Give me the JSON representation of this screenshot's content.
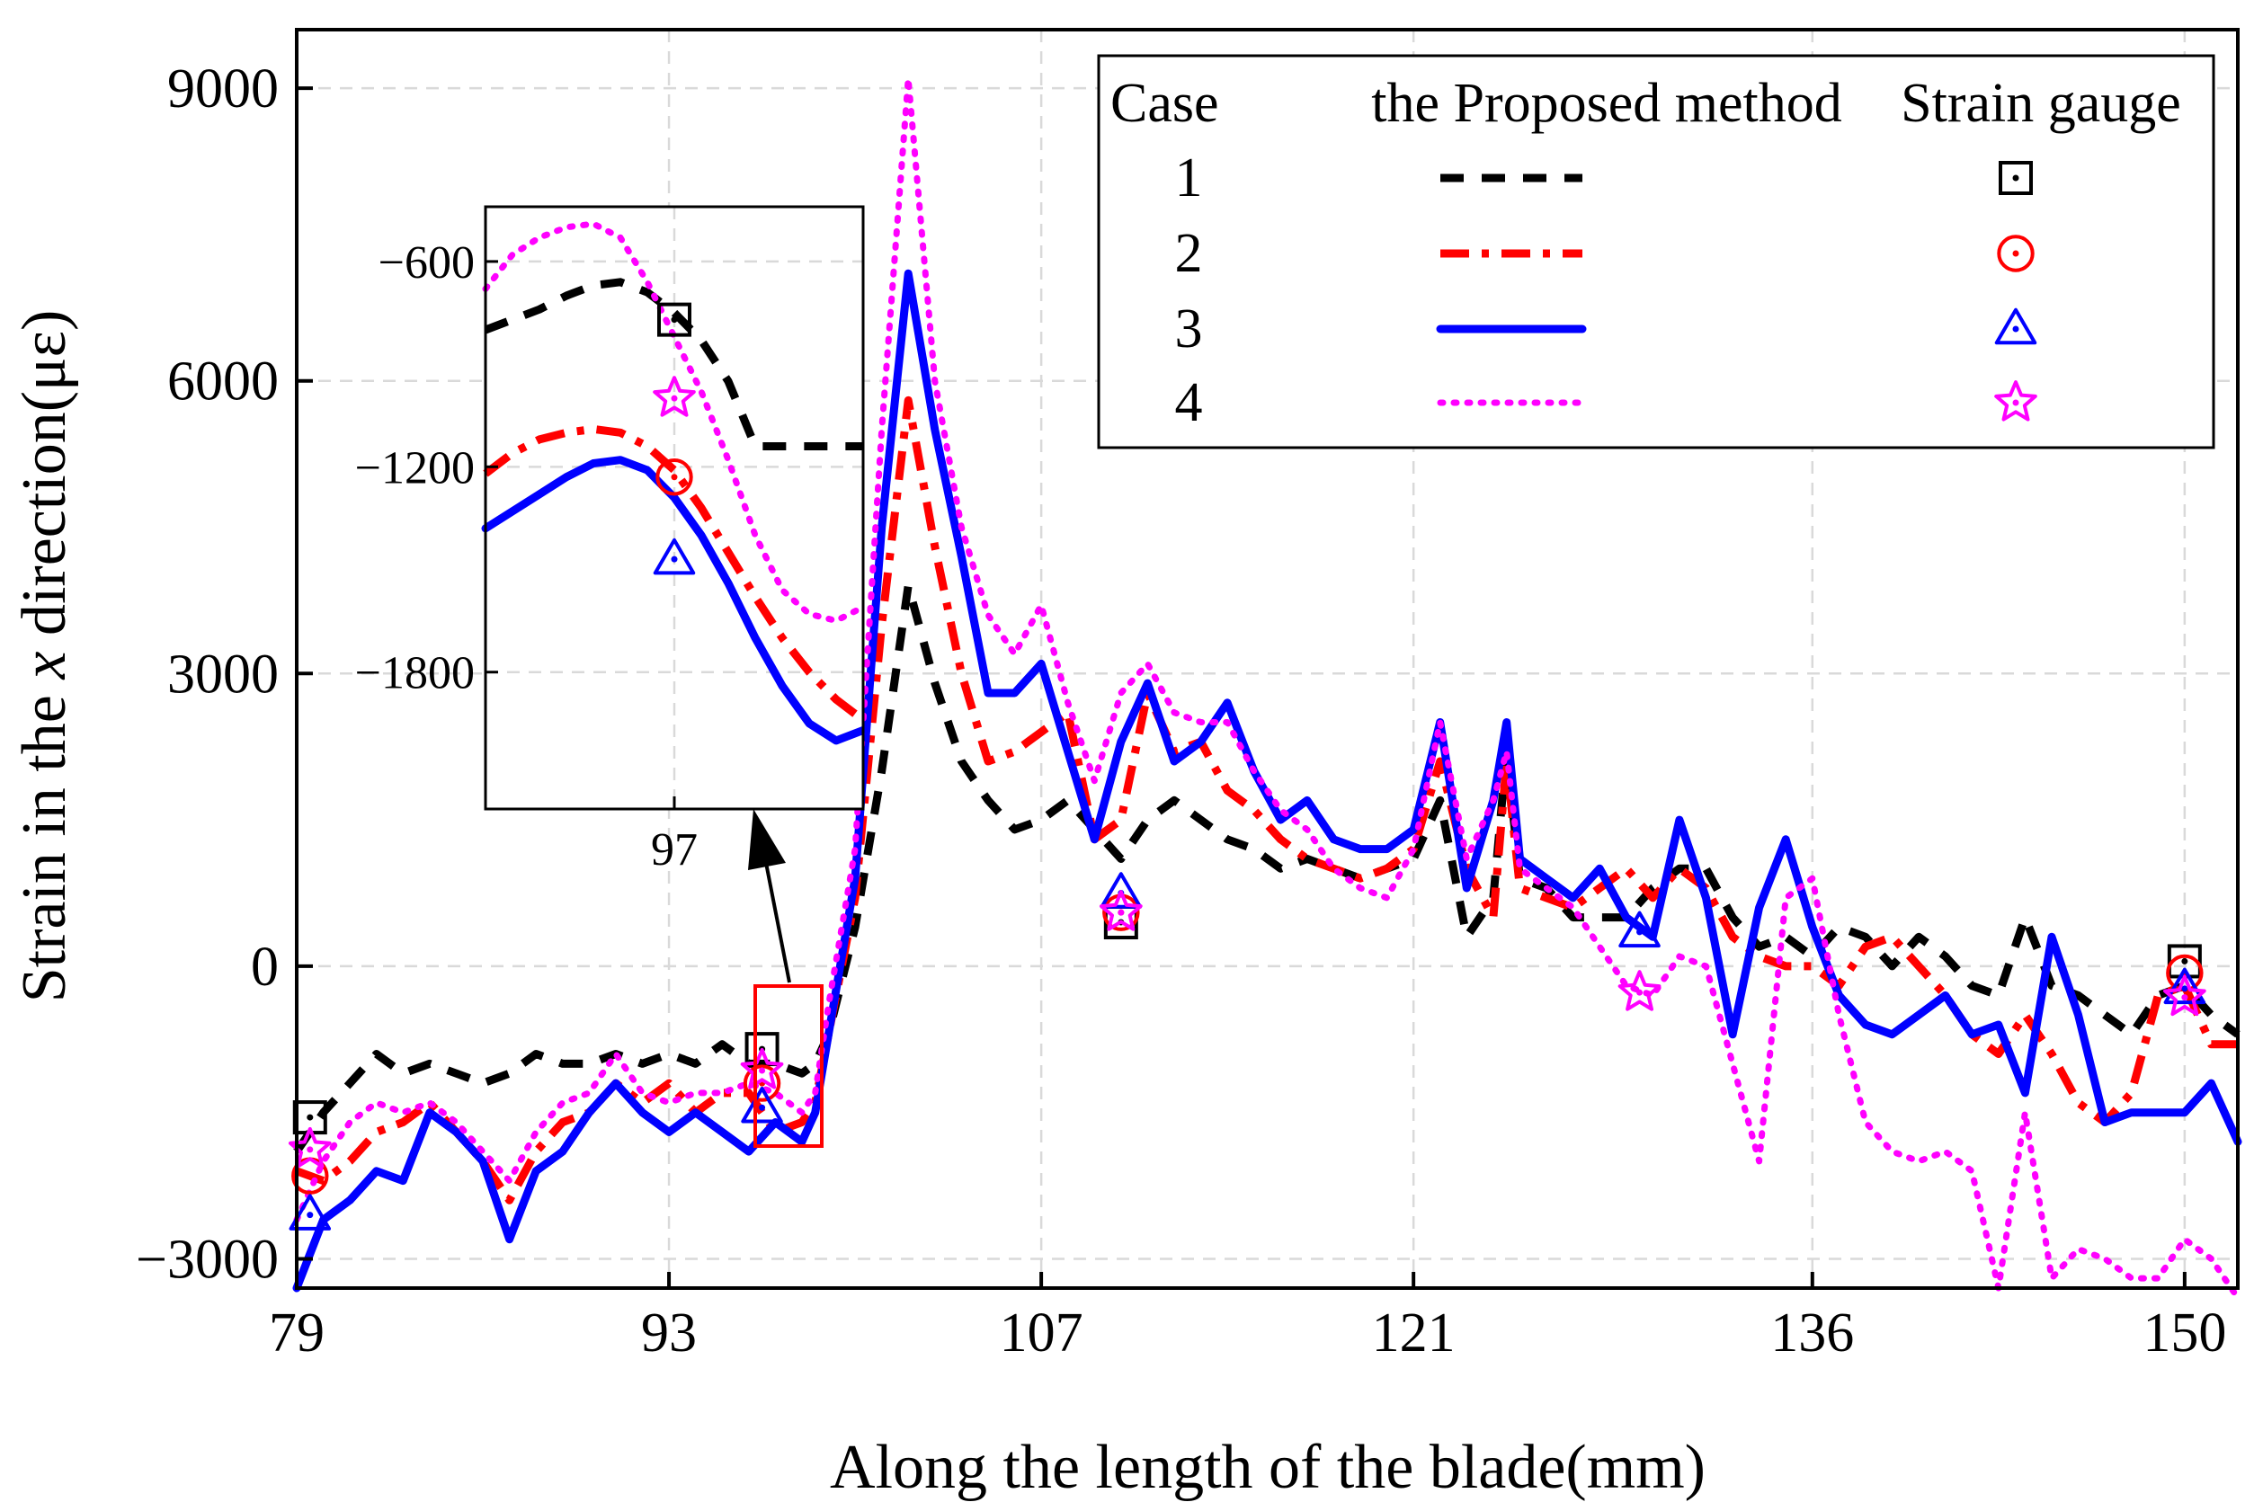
{
  "chart_data": {
    "type": "line",
    "xlabel": "Along the length of the blade(mm)",
    "ylabel_parts": [
      "Strain in the ",
      "x",
      " direction(με)"
    ],
    "xlim": [
      79,
      152
    ],
    "ylim": [
      -3300,
      9600
    ],
    "x_ticks": [
      79,
      93,
      107,
      121,
      136,
      150
    ],
    "y_ticks": [
      -3000,
      0,
      3000,
      6000,
      9000
    ],
    "y_tick_labels": [
      "−3000",
      "0",
      "3000",
      "6000",
      "9000"
    ],
    "legend": {
      "headers": [
        "Case",
        "the Proposed method",
        "Strain gauge"
      ],
      "cases": [
        "1",
        "2",
        "3",
        "4"
      ]
    },
    "series": [
      {
        "name": "1",
        "color": "#000000",
        "line_style": "dashed",
        "marker": "square",
        "x": [
          79,
          80,
          81,
          82,
          83,
          84,
          85,
          86,
          87,
          88,
          89,
          90,
          91,
          92,
          93,
          94,
          95,
          96,
          97,
          98,
          98.5,
          99,
          100,
          101,
          102,
          103,
          104,
          105,
          106,
          107,
          108,
          109,
          110,
          111,
          112,
          113,
          114,
          115,
          116,
          117,
          118,
          119,
          120,
          121,
          122,
          123,
          124,
          124.5,
          125,
          126,
          127,
          128,
          129,
          130,
          131,
          132,
          133,
          134,
          135,
          136,
          137,
          138,
          139,
          140,
          141,
          142,
          143,
          144,
          145,
          146,
          147,
          148,
          149,
          150,
          151,
          152
        ],
        "values": [
          -1900,
          -1500,
          -1200,
          -900,
          -1100,
          -1000,
          -1100,
          -1200,
          -1100,
          -900,
          -1000,
          -1000,
          -900,
          -1000,
          -900,
          -1000,
          -800,
          -1000,
          -1000,
          -1100,
          -1000,
          -700,
          400,
          2000,
          3900,
          2900,
          2100,
          1700,
          1400,
          1500,
          1700,
          1400,
          1100,
          1500,
          1700,
          1500,
          1300,
          1200,
          1000,
          1100,
          1000,
          900,
          1000,
          1100,
          1700,
          300,
          700,
          2200,
          900,
          800,
          500,
          500,
          500,
          800,
          1000,
          1000,
          500,
          200,
          300,
          100,
          400,
          300,
          0,
          300,
          100,
          -200,
          -300,
          500,
          -200,
          -300,
          -500,
          -700,
          -300,
          -200,
          -500,
          -700
        ],
        "gauges": {
          "x": [
            79.5,
            96.5,
            110,
            150
          ],
          "values": [
            -1550,
            -850,
            450,
            50
          ]
        }
      },
      {
        "name": "2",
        "color": "#ff0000",
        "line_style": "dashdot",
        "marker": "circle",
        "x": [
          79,
          80,
          81,
          82,
          83,
          84,
          85,
          86,
          87,
          88,
          89,
          90,
          91,
          92,
          93,
          94,
          95,
          96,
          97,
          98,
          98.5,
          99,
          100,
          101,
          102,
          103,
          104,
          105,
          106,
          107,
          108,
          109,
          110,
          111,
          112,
          113,
          114,
          115,
          116,
          117,
          118,
          119,
          120,
          121,
          122,
          123,
          124,
          124.5,
          125,
          126,
          127,
          128,
          129,
          130,
          131,
          132,
          133,
          134,
          135,
          136,
          137,
          138,
          139,
          140,
          141,
          142,
          143,
          144,
          145,
          146,
          147,
          148,
          149,
          150,
          151,
          152
        ],
        "values": [
          -2100,
          -2200,
          -2000,
          -1700,
          -1600,
          -1400,
          -1700,
          -2000,
          -2400,
          -1900,
          -1600,
          -1500,
          -1200,
          -1400,
          -1200,
          -1500,
          -1300,
          -1300,
          -1700,
          -1600,
          -1400,
          -700,
          700,
          3500,
          5800,
          4300,
          3000,
          2100,
          2200,
          2400,
          2600,
          1300,
          1500,
          2800,
          2200,
          2300,
          1800,
          1600,
          1300,
          1100,
          1000,
          900,
          1000,
          1200,
          2100,
          1000,
          500,
          2100,
          800,
          700,
          600,
          800,
          1000,
          700,
          1000,
          800,
          300,
          100,
          0,
          0,
          -200,
          200,
          300,
          0,
          -300,
          -700,
          -900,
          -500,
          -900,
          -1400,
          -1600,
          -1300,
          -300,
          -200,
          -800,
          -800
        ],
        "gauges": {
          "x": [
            79.5,
            96.5,
            110,
            150
          ],
          "values": [
            -2150,
            -1200,
            550,
            -70
          ]
        }
      },
      {
        "name": "3",
        "color": "#0000ff",
        "line_style": "solid",
        "marker": "triangle",
        "x": [
          79,
          80,
          81,
          82,
          83,
          84,
          85,
          86,
          87,
          88,
          89,
          90,
          91,
          92,
          93,
          94,
          95,
          96,
          97,
          98,
          98.5,
          99,
          100,
          101,
          102,
          103,
          104,
          105,
          106,
          107,
          108,
          109,
          110,
          111,
          112,
          113,
          114,
          115,
          116,
          117,
          118,
          119,
          120,
          121,
          122,
          123,
          124,
          124.5,
          125,
          126,
          127,
          128,
          129,
          130,
          131,
          132,
          133,
          134,
          135,
          136,
          137,
          138,
          139,
          140,
          141,
          142,
          143,
          144,
          145,
          146,
          147,
          148,
          149,
          150,
          151,
          152
        ],
        "values": [
          -3300,
          -2600,
          -2400,
          -2100,
          -2200,
          -1500,
          -1700,
          -2000,
          -2800,
          -2100,
          -1900,
          -1500,
          -1200,
          -1500,
          -1700,
          -1500,
          -1700,
          -1900,
          -1600,
          -1800,
          -1500,
          -700,
          900,
          4500,
          7100,
          5500,
          4200,
          2800,
          2800,
          3100,
          2200,
          1300,
          2300,
          2900,
          2100,
          2300,
          2700,
          2000,
          1500,
          1700,
          1300,
          1200,
          1200,
          1400,
          2500,
          800,
          1700,
          2500,
          1100,
          900,
          700,
          1000,
          500,
          300,
          1500,
          700,
          -700,
          600,
          1300,
          400,
          -300,
          -600,
          -700,
          -500,
          -300,
          -700,
          -600,
          -1300,
          300,
          -500,
          -1600,
          -1500,
          -1500,
          -1500,
          -1200,
          -1800
        ],
        "gauges": {
          "x": [
            79.5,
            96.5,
            110,
            129.5,
            150
          ],
          "values": [
            -2550,
            -1450,
            750,
            350,
            -230
          ]
        }
      },
      {
        "name": "4",
        "color": "#ff00ff",
        "line_style": "dotted",
        "marker": "star",
        "x": [
          79,
          80,
          81,
          82,
          83,
          84,
          85,
          86,
          87,
          88,
          89,
          90,
          91,
          92,
          93,
          94,
          95,
          96,
          97,
          98,
          98.5,
          99,
          100,
          101,
          102,
          103,
          104,
          105,
          106,
          107,
          108,
          109,
          110,
          111,
          112,
          113,
          114,
          115,
          116,
          117,
          118,
          119,
          120,
          121,
          122,
          123,
          124,
          124.5,
          125,
          126,
          127,
          128,
          129,
          130,
          131,
          132,
          133,
          134,
          135,
          136,
          137,
          138,
          139,
          140,
          141,
          142,
          143,
          144,
          145,
          146,
          147,
          148,
          149,
          150,
          151,
          152
        ],
        "values": [
          -2600,
          -2000,
          -1600,
          -1400,
          -1500,
          -1400,
          -1600,
          -1900,
          -2200,
          -1700,
          -1400,
          -1300,
          -900,
          -1300,
          -1400,
          -1300,
          -1300,
          -1200,
          -1300,
          -1500,
          -1300,
          -400,
          1200,
          5500,
          9100,
          6000,
          4500,
          3600,
          3200,
          3700,
          2700,
          1900,
          2800,
          3100,
          2600,
          2500,
          2500,
          2000,
          1600,
          1400,
          1000,
          800,
          700,
          1200,
          2500,
          1100,
          1700,
          2200,
          1000,
          800,
          600,
          200,
          -200,
          -300,
          100,
          0,
          -1000,
          -2000,
          700,
          900,
          -500,
          -1600,
          -1900,
          -2000,
          -1900,
          -2100,
          -3300,
          -1500,
          -3200,
          -2900,
          -3000,
          -3200,
          -3200,
          -2800,
          -3000,
          -3400
        ],
        "gauges": {
          "x": [
            79.5,
            96.5,
            110,
            129.5,
            150
          ],
          "values": [
            -1880,
            -1070,
            550,
            -270,
            -320
          ]
        }
      }
    ],
    "inset": {
      "xlim": [
        93.5,
        100.5
      ],
      "ylim": [
        -2200,
        -440
      ],
      "x_ticks": [
        97
      ],
      "y_ticks": [
        -600,
        -1200,
        -1800
      ],
      "y_tick_labels": [
        "−600",
        "−1200",
        "−1800"
      ],
      "lines": [
        {
          "x": [
            93.5,
            94,
            94.5,
            95,
            95.5,
            96,
            96.5,
            97,
            97.5,
            98,
            98.5,
            99,
            99.5,
            100,
            100.5
          ],
          "values": [
            -800,
            -770,
            -740,
            -700,
            -670,
            -660,
            -690,
            -750,
            -830,
            -950,
            -1140,
            -1140,
            -1140,
            -1140,
            -1140
          ]
        },
        {
          "x": [
            93.5,
            94,
            94.5,
            95,
            95.5,
            96,
            96.5,
            97,
            97.5,
            98,
            98.5,
            99,
            99.5,
            100,
            100.5
          ],
          "values": [
            -1220,
            -1160,
            -1120,
            -1100,
            -1090,
            -1100,
            -1140,
            -1210,
            -1320,
            -1450,
            -1580,
            -1700,
            -1800,
            -1880,
            -1940
          ]
        },
        {
          "x": [
            93.5,
            94,
            94.5,
            95,
            95.5,
            96,
            96.5,
            97,
            97.5,
            98,
            98.5,
            99,
            99.5,
            100,
            100.5
          ],
          "values": [
            -1380,
            -1330,
            -1280,
            -1230,
            -1190,
            -1180,
            -1210,
            -1290,
            -1400,
            -1540,
            -1700,
            -1840,
            -1950,
            -2000,
            -1970
          ]
        },
        {
          "x": [
            93.5,
            94,
            94.5,
            95,
            95.5,
            96,
            96.5,
            97,
            97.5,
            98,
            98.5,
            99,
            99.5,
            100,
            100.5
          ],
          "values": [
            -680,
            -580,
            -530,
            -500,
            -490,
            -530,
            -660,
            -820,
            -980,
            -1180,
            -1400,
            -1560,
            -1630,
            -1650,
            -1610
          ]
        }
      ],
      "gauges": [
        {
          "x": 97,
          "value": -770
        },
        {
          "x": 97,
          "value": -1230
        },
        {
          "x": 97,
          "value": -1470
        },
        {
          "x": 97,
          "value": -1000
        }
      ]
    }
  }
}
